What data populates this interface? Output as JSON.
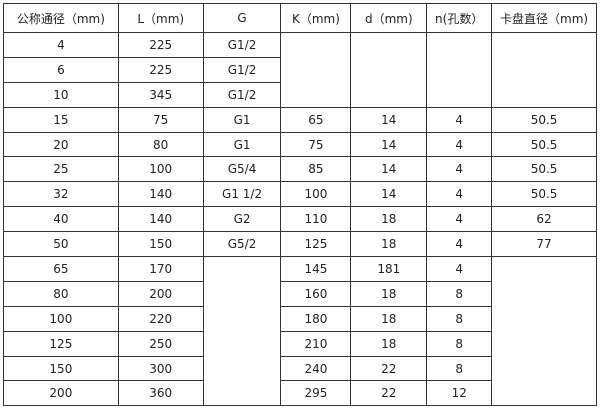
{
  "headers": [
    "公称通径（mm)",
    "L（mm)",
    "G",
    "K（mm)",
    "d（mm)",
    "n(孔数）",
    "卡盘直径（mm)"
  ],
  "rows": [
    [
      "4",
      "225",
      "G1/2",
      "",
      "",
      "",
      ""
    ],
    [
      "6",
      "225",
      "G1/2",
      null,
      null,
      null,
      null
    ],
    [
      "10",
      "345",
      "G1/2",
      null,
      null,
      null,
      null
    ],
    [
      "15",
      "75",
      "G1",
      "65",
      "14",
      "4",
      "50.5"
    ],
    [
      "20",
      "80",
      "G1",
      "75",
      "14",
      "4",
      "50.5"
    ],
    [
      "25",
      "100",
      "G5/4",
      "85",
      "14",
      "4",
      "50.5"
    ],
    [
      "32",
      "140",
      "G1  1/2",
      "100",
      "14",
      "4",
      "50.5"
    ],
    [
      "40",
      "140",
      "G2",
      "110",
      "18",
      "4",
      "62"
    ],
    [
      "50",
      "150",
      "G5/2",
      "125",
      "18",
      "4",
      "77"
    ],
    [
      "65",
      "170",
      "",
      "145",
      "181",
      "4",
      ""
    ],
    [
      "80",
      "200",
      null,
      "160",
      "18",
      "8",
      null
    ],
    [
      "100",
      "220",
      null,
      "180",
      "18",
      "8",
      null
    ],
    [
      "125",
      "250",
      null,
      "210",
      "18",
      "8",
      null
    ],
    [
      "150",
      "300",
      null,
      "240",
      "22",
      "8",
      null
    ],
    [
      "200",
      "360",
      null,
      "295",
      "22",
      "12",
      null
    ]
  ]
}
